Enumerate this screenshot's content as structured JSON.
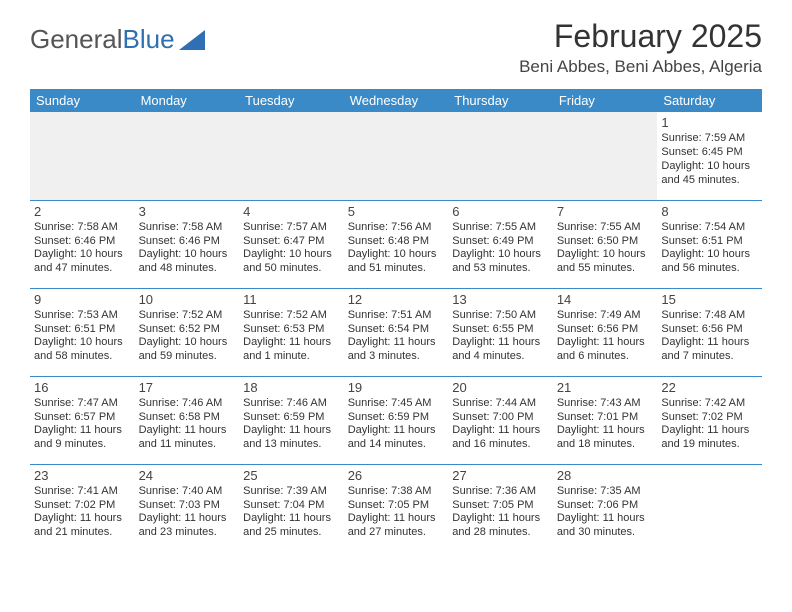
{
  "logo": {
    "text1": "General",
    "text2": "Blue"
  },
  "title": "February 2025",
  "location": "Beni Abbes, Beni Abbes, Algeria",
  "colors": {
    "header_bg": "#3a8ac8",
    "header_text": "#ffffff",
    "divider": "#3a8ac8",
    "logo_gray": "#555555",
    "logo_blue": "#2f6fb3",
    "body_text": "#333333",
    "empty_row_bg": "#f0f0f0"
  },
  "typography": {
    "title_fontsize": 32,
    "location_fontsize": 17,
    "dayheader_fontsize": 13,
    "daynum_fontsize": 13,
    "cell_fontsize": 11
  },
  "day_headers": [
    "Sunday",
    "Monday",
    "Tuesday",
    "Wednesday",
    "Thursday",
    "Friday",
    "Saturday"
  ],
  "weeks": [
    [
      null,
      null,
      null,
      null,
      null,
      null,
      {
        "n": "1",
        "sr": "Sunrise: 7:59 AM",
        "ss": "Sunset: 6:45 PM",
        "dl": "Daylight: 10 hours and 45 minutes."
      }
    ],
    [
      {
        "n": "2",
        "sr": "Sunrise: 7:58 AM",
        "ss": "Sunset: 6:46 PM",
        "dl": "Daylight: 10 hours and 47 minutes."
      },
      {
        "n": "3",
        "sr": "Sunrise: 7:58 AM",
        "ss": "Sunset: 6:46 PM",
        "dl": "Daylight: 10 hours and 48 minutes."
      },
      {
        "n": "4",
        "sr": "Sunrise: 7:57 AM",
        "ss": "Sunset: 6:47 PM",
        "dl": "Daylight: 10 hours and 50 minutes."
      },
      {
        "n": "5",
        "sr": "Sunrise: 7:56 AM",
        "ss": "Sunset: 6:48 PM",
        "dl": "Daylight: 10 hours and 51 minutes."
      },
      {
        "n": "6",
        "sr": "Sunrise: 7:55 AM",
        "ss": "Sunset: 6:49 PM",
        "dl": "Daylight: 10 hours and 53 minutes."
      },
      {
        "n": "7",
        "sr": "Sunrise: 7:55 AM",
        "ss": "Sunset: 6:50 PM",
        "dl": "Daylight: 10 hours and 55 minutes."
      },
      {
        "n": "8",
        "sr": "Sunrise: 7:54 AM",
        "ss": "Sunset: 6:51 PM",
        "dl": "Daylight: 10 hours and 56 minutes."
      }
    ],
    [
      {
        "n": "9",
        "sr": "Sunrise: 7:53 AM",
        "ss": "Sunset: 6:51 PM",
        "dl": "Daylight: 10 hours and 58 minutes."
      },
      {
        "n": "10",
        "sr": "Sunrise: 7:52 AM",
        "ss": "Sunset: 6:52 PM",
        "dl": "Daylight: 10 hours and 59 minutes."
      },
      {
        "n": "11",
        "sr": "Sunrise: 7:52 AM",
        "ss": "Sunset: 6:53 PM",
        "dl": "Daylight: 11 hours and 1 minute."
      },
      {
        "n": "12",
        "sr": "Sunrise: 7:51 AM",
        "ss": "Sunset: 6:54 PM",
        "dl": "Daylight: 11 hours and 3 minutes."
      },
      {
        "n": "13",
        "sr": "Sunrise: 7:50 AM",
        "ss": "Sunset: 6:55 PM",
        "dl": "Daylight: 11 hours and 4 minutes."
      },
      {
        "n": "14",
        "sr": "Sunrise: 7:49 AM",
        "ss": "Sunset: 6:56 PM",
        "dl": "Daylight: 11 hours and 6 minutes."
      },
      {
        "n": "15",
        "sr": "Sunrise: 7:48 AM",
        "ss": "Sunset: 6:56 PM",
        "dl": "Daylight: 11 hours and 7 minutes."
      }
    ],
    [
      {
        "n": "16",
        "sr": "Sunrise: 7:47 AM",
        "ss": "Sunset: 6:57 PM",
        "dl": "Daylight: 11 hours and 9 minutes."
      },
      {
        "n": "17",
        "sr": "Sunrise: 7:46 AM",
        "ss": "Sunset: 6:58 PM",
        "dl": "Daylight: 11 hours and 11 minutes."
      },
      {
        "n": "18",
        "sr": "Sunrise: 7:46 AM",
        "ss": "Sunset: 6:59 PM",
        "dl": "Daylight: 11 hours and 13 minutes."
      },
      {
        "n": "19",
        "sr": "Sunrise: 7:45 AM",
        "ss": "Sunset: 6:59 PM",
        "dl": "Daylight: 11 hours and 14 minutes."
      },
      {
        "n": "20",
        "sr": "Sunrise: 7:44 AM",
        "ss": "Sunset: 7:00 PM",
        "dl": "Daylight: 11 hours and 16 minutes."
      },
      {
        "n": "21",
        "sr": "Sunrise: 7:43 AM",
        "ss": "Sunset: 7:01 PM",
        "dl": "Daylight: 11 hours and 18 minutes."
      },
      {
        "n": "22",
        "sr": "Sunrise: 7:42 AM",
        "ss": "Sunset: 7:02 PM",
        "dl": "Daylight: 11 hours and 19 minutes."
      }
    ],
    [
      {
        "n": "23",
        "sr": "Sunrise: 7:41 AM",
        "ss": "Sunset: 7:02 PM",
        "dl": "Daylight: 11 hours and 21 minutes."
      },
      {
        "n": "24",
        "sr": "Sunrise: 7:40 AM",
        "ss": "Sunset: 7:03 PM",
        "dl": "Daylight: 11 hours and 23 minutes."
      },
      {
        "n": "25",
        "sr": "Sunrise: 7:39 AM",
        "ss": "Sunset: 7:04 PM",
        "dl": "Daylight: 11 hours and 25 minutes."
      },
      {
        "n": "26",
        "sr": "Sunrise: 7:38 AM",
        "ss": "Sunset: 7:05 PM",
        "dl": "Daylight: 11 hours and 27 minutes."
      },
      {
        "n": "27",
        "sr": "Sunrise: 7:36 AM",
        "ss": "Sunset: 7:05 PM",
        "dl": "Daylight: 11 hours and 28 minutes."
      },
      {
        "n": "28",
        "sr": "Sunrise: 7:35 AM",
        "ss": "Sunset: 7:06 PM",
        "dl": "Daylight: 11 hours and 30 minutes."
      },
      null
    ]
  ]
}
